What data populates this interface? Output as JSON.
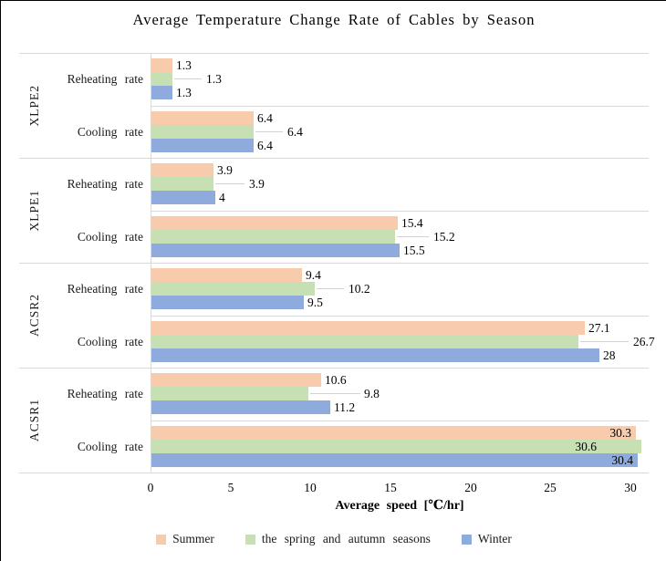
{
  "chart_data": {
    "type": "bar",
    "orientation": "horizontal",
    "title": "Average Temperature Change Rate of Cables by Season",
    "xlabel": "Average speed [℃/hr]",
    "x_ticks": [
      0,
      5,
      10,
      15,
      20,
      25,
      30
    ],
    "x_axis_max": 31.1,
    "grid": "category-separators-only",
    "legend_position": "bottom",
    "series": [
      {
        "name": "Summer",
        "color": "#F8CBAD"
      },
      {
        "name": "the spring and autumn seasons",
        "color": "#C6E0B4"
      },
      {
        "name": "Winter",
        "color": "#8FAADC"
      }
    ],
    "groups": [
      {
        "name": "XLPE2",
        "categories": [
          {
            "label": "Reheating rate",
            "values": [
              1.3,
              1.3,
              1.3
            ],
            "value_labels": [
              "1.3",
              "1.3",
              "1.3"
            ]
          },
          {
            "label": "Cooling rate",
            "values": [
              6.4,
              6.4,
              6.4
            ],
            "value_labels": [
              "6.4",
              "6.4",
              "6.4"
            ]
          }
        ]
      },
      {
        "name": "XLPE1",
        "categories": [
          {
            "label": "Reheating rate",
            "values": [
              3.9,
              3.9,
              4
            ],
            "value_labels": [
              "3.9",
              "3.9",
              "4"
            ]
          },
          {
            "label": "Cooling rate",
            "values": [
              15.4,
              15.2,
              15.5
            ],
            "value_labels": [
              "15.4",
              "15.2",
              "15.5"
            ]
          }
        ]
      },
      {
        "name": "ACSR2",
        "categories": [
          {
            "label": "Reheating rate",
            "values": [
              9.4,
              10.2,
              9.5
            ],
            "value_labels": [
              "9.4",
              "10.2",
              "9.5"
            ]
          },
          {
            "label": "Cooling rate",
            "values": [
              27.1,
              26.7,
              28
            ],
            "value_labels": [
              "27.1",
              "26.7",
              "28"
            ]
          }
        ]
      },
      {
        "name": "ACSR1",
        "categories": [
          {
            "label": "Reheating rate",
            "values": [
              10.6,
              9.8,
              11.2
            ],
            "value_labels": [
              "10.6",
              "9.8",
              "11.2"
            ]
          },
          {
            "label": "Cooling rate",
            "values": [
              30.3,
              30.6,
              30.4
            ],
            "value_labels": [
              "30.3",
              "30.6",
              "30.4"
            ]
          }
        ]
      }
    ],
    "colors": {
      "gridline": "#D9D9D9",
      "leader_line": "#D2D2D2",
      "text": "#000000",
      "background": "#FFFFFF"
    }
  }
}
